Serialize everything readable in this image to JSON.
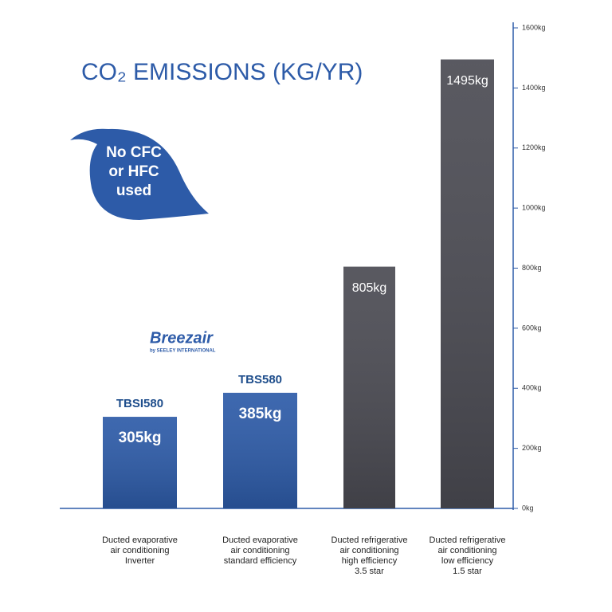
{
  "chart_data": {
    "type": "bar",
    "title": "CO₂ EMISSIONS (KG/YR)",
    "categories": [
      "Ducted evaporative\nair conditioning\nInverter",
      "Ducted evaporative\nair conditioning\nstandard efficiency",
      "Ducted refrigerative\nair conditioning\nhigh efficiency\n3.5 star",
      "Ducted refrigerative\nair conditioning\nlow efficiency\n1.5 star"
    ],
    "values": [
      305,
      385,
      805,
      1495
    ],
    "value_labels": [
      "305kg",
      "385kg",
      "805kg",
      "1495kg"
    ],
    "model_labels": [
      "TBSI580",
      "TBS580",
      null,
      null
    ],
    "colors": [
      "#2d5ba8",
      "#2d5ba8",
      "#4b4b53",
      "#4b4b53"
    ],
    "ylim": [
      0,
      1600
    ],
    "yticks": [
      {
        "value": 0,
        "label": "0kg"
      },
      {
        "value": 200,
        "label": "200kg"
      },
      {
        "value": 400,
        "label": "400kg"
      },
      {
        "value": 600,
        "label": "600kg"
      },
      {
        "value": 800,
        "label": "800kg"
      },
      {
        "value": 1000,
        "label": "1000kg"
      },
      {
        "value": 1200,
        "label": "1200kg"
      },
      {
        "value": 1400,
        "label": "1400kg"
      },
      {
        "value": 1600,
        "label": "1600kg"
      }
    ],
    "leaf_text": "No CFC\nor HFC\nused",
    "brand": "Breezair",
    "brand_sub": "by SEELEY INTERNATIONAL"
  }
}
